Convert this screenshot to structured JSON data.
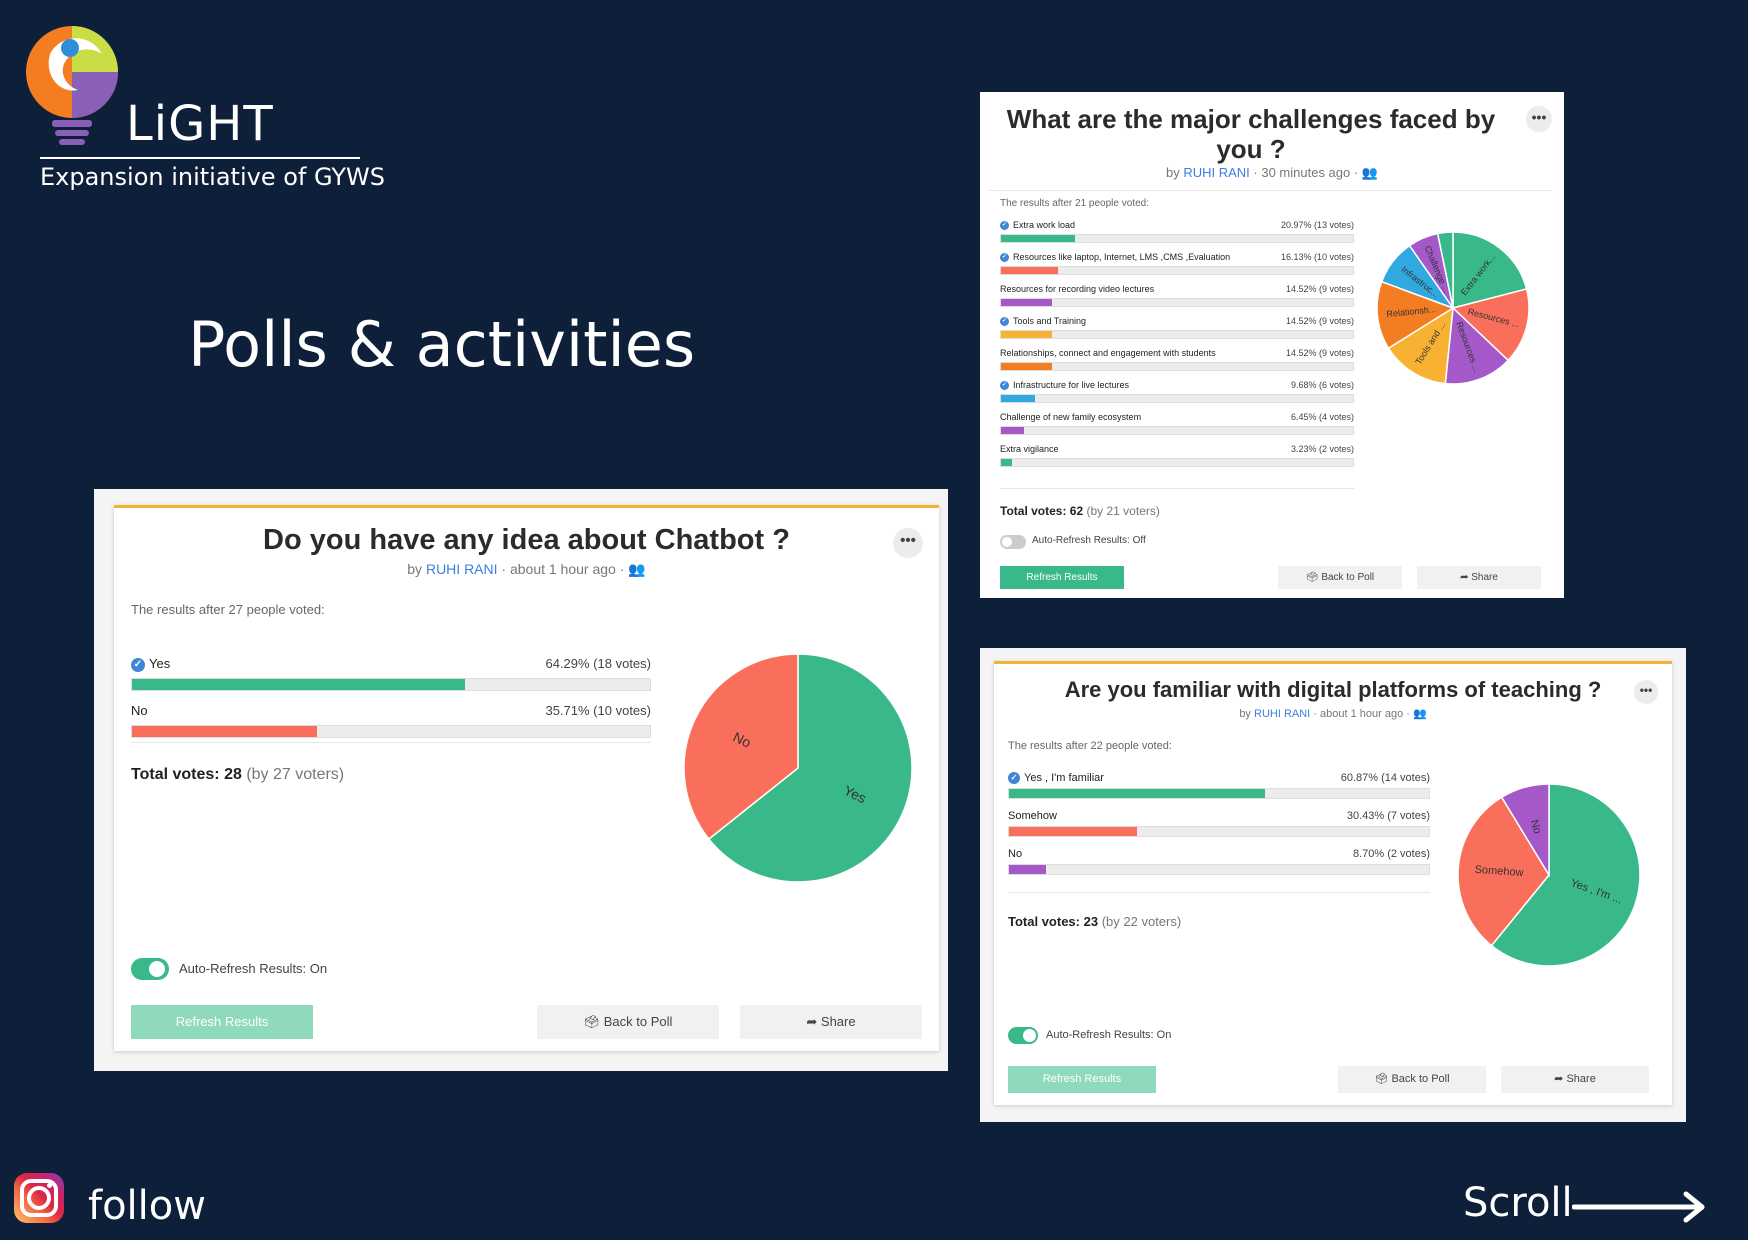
{
  "brand": {
    "name": "LiGHT",
    "tagline": "Expansion initiative of GYWS"
  },
  "heading": "Polls & activities",
  "footer": {
    "follow_label": "follow",
    "scroll_label": "Scroll"
  },
  "colors": {
    "background": "#0e1f3a",
    "green": "#39b98a",
    "red": "#fa6f5b",
    "purple": "#a559c9",
    "orange": "#f47d22",
    "yellow": "#f7b234",
    "blue": "#30a8e0"
  },
  "polls": [
    {
      "question": "What are the major challenges faced by you ?",
      "author": "RUHI RANI",
      "time_meta": "· 30 minutes ago ·",
      "results_label": "The results after 21 people voted:",
      "total_label": "Total votes:",
      "total_value": "62",
      "total_sub": "(by 21 voters)",
      "auto_refresh": "Auto-Refresh Results: Off",
      "refresh_label": "Refresh Results",
      "back_label": "Back to Poll",
      "share_label": "Share",
      "options": [
        {
          "label": "Extra work load",
          "value": "20.97% (13 votes)",
          "pct": 20.97,
          "color": "#39b98a",
          "checked": true,
          "slice_label": "Extra work..."
        },
        {
          "label": "Resources like laptop, Internet, LMS ,CMS ,Evaluation",
          "value": "16.13% (10 votes)",
          "pct": 16.13,
          "color": "#fa6f5b",
          "checked": true,
          "slice_label": "Resources ..."
        },
        {
          "label": "Resources for recording video lectures",
          "value": "14.52% (9 votes)",
          "pct": 14.52,
          "color": "#a559c9",
          "checked": false,
          "slice_label": "Resources ..."
        },
        {
          "label": "Tools and Training",
          "value": "14.52% (9 votes)",
          "pct": 14.52,
          "color": "#f7b234",
          "checked": true,
          "slice_label": "Tools and ..."
        },
        {
          "label": "Relationships, connect and engagement with students",
          "value": "14.52% (9 votes)",
          "pct": 14.52,
          "color": "#f47d22",
          "checked": false,
          "slice_label": "Relationsh..."
        },
        {
          "label": "Infrastructure for live lectures",
          "value": "9.68% (6 votes)",
          "pct": 9.68,
          "color": "#30a8e0",
          "checked": true,
          "slice_label": "Infrastruc..."
        },
        {
          "label": "Challenge of new family ecosystem",
          "value": "6.45% (4 votes)",
          "pct": 6.45,
          "color": "#a559c9",
          "checked": false,
          "slice_label": "Challenge ..."
        },
        {
          "label": "Extra vigilance",
          "value": "3.23% (2 votes)",
          "pct": 3.23,
          "color": "#39b98a",
          "checked": false,
          "slice_label": ""
        }
      ]
    },
    {
      "question": "Do you have any idea about Chatbot ?",
      "author": "RUHI RANI",
      "time_meta": "· about 1 hour ago ·",
      "results_label": "The results after 27 people voted:",
      "total_label": "Total votes:",
      "total_value": "28",
      "total_sub": "(by 27 voters)",
      "auto_refresh": "Auto-Refresh Results: On",
      "refresh_label": "Refresh Results",
      "back_label": "Back to Poll",
      "share_label": "Share",
      "options": [
        {
          "label": "Yes",
          "value": "64.29% (18 votes)",
          "pct": 64.29,
          "color": "#39b98a",
          "checked": true,
          "slice_label": "Yes"
        },
        {
          "label": "No",
          "value": "35.71% (10 votes)",
          "pct": 35.71,
          "color": "#fa6f5b",
          "checked": false,
          "slice_label": "No"
        }
      ]
    },
    {
      "question": "Are you familiar with digital platforms of teaching ?",
      "author": "RUHI RANI",
      "time_meta": "· about 1 hour ago ·",
      "results_label": "The results after 22 people voted:",
      "total_label": "Total votes:",
      "total_value": "23",
      "total_sub": "(by 22 voters)",
      "auto_refresh": "Auto-Refresh Results: On",
      "refresh_label": "Refresh Results",
      "back_label": "Back to Poll",
      "share_label": "Share",
      "options": [
        {
          "label": "Yes , I'm familiar",
          "value": "60.87% (14 votes)",
          "pct": 60.87,
          "color": "#39b98a",
          "checked": true,
          "slice_label": "Yes , I'm ..."
        },
        {
          "label": "Somehow",
          "value": "30.43% (7 votes)",
          "pct": 30.43,
          "color": "#fa6f5b",
          "checked": false,
          "slice_label": "Somehow"
        },
        {
          "label": "No",
          "value": "8.70% (2 votes)",
          "pct": 8.7,
          "color": "#a559c9",
          "checked": false,
          "slice_label": "No"
        }
      ]
    }
  ]
}
